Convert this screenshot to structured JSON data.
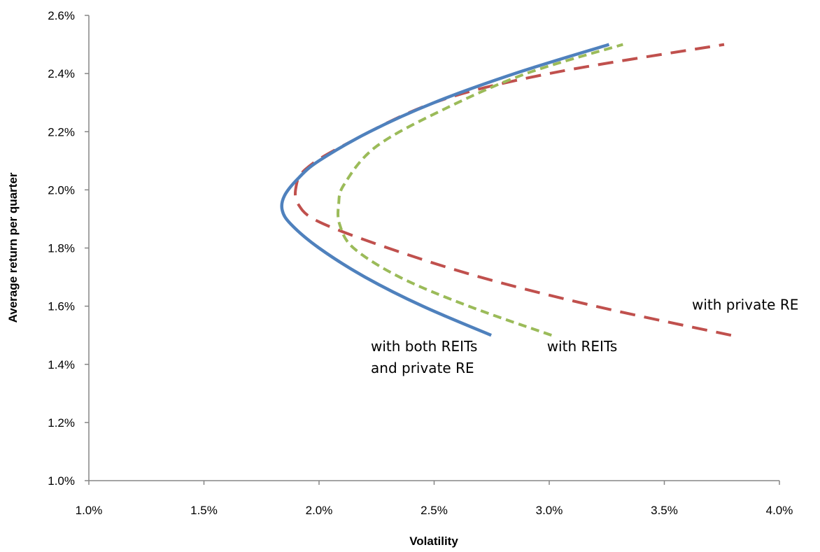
{
  "chart_data": {
    "type": "line",
    "title": "",
    "xlabel": "Volatility",
    "ylabel": "Average return per quarter",
    "xlim": [
      0.01,
      0.04
    ],
    "ylim": [
      0.01,
      0.026
    ],
    "xticks": [
      "1.0%",
      "1.5%",
      "2.0%",
      "2.5%",
      "3.0%",
      "3.5%",
      "4.0%"
    ],
    "yticks": [
      "1.0%",
      "1.2%",
      "1.4%",
      "1.6%",
      "1.8%",
      "2.0%",
      "2.2%",
      "2.4%",
      "2.6%"
    ],
    "grid": false,
    "legend": "none",
    "series": [
      {
        "color": "#4F81BD",
        "style": "solid",
        "x": [
          0.02748,
          0.0245,
          0.022,
          0.02,
          0.0188,
          0.0184,
          0.0185,
          0.0191,
          0.02,
          0.0222,
          0.025,
          0.0285,
          0.0326
        ],
        "y": [
          0.015,
          0.016,
          0.017,
          0.018,
          0.0188,
          0.0193,
          0.0198,
          0.0204,
          0.021,
          0.022,
          0.023,
          0.024,
          0.025
        ]
      },
      {
        "color": "#9BBB59",
        "style": "dashed",
        "x": [
          0.0301,
          0.0265,
          0.0235,
          0.0215,
          0.0209,
          0.02085,
          0.0211,
          0.0225,
          0.0255,
          0.029,
          0.0332
        ],
        "y": [
          0.015,
          0.016,
          0.017,
          0.018,
          0.0188,
          0.0195,
          0.0202,
          0.0215,
          0.0228,
          0.024,
          0.025
        ]
      },
      {
        "color": "#C0504D",
        "style": "dashed",
        "x": [
          0.0379,
          0.032,
          0.027,
          0.023,
          0.02,
          0.0191,
          0.019,
          0.0194,
          0.021,
          0.025,
          0.03,
          0.0376
        ],
        "y": [
          0.015,
          0.016,
          0.017,
          0.018,
          0.0189,
          0.0195,
          0.0201,
          0.0207,
          0.0215,
          0.023,
          0.024,
          0.025
        ]
      }
    ],
    "annotations": [
      {
        "lines": [
          "with both REITs",
          "and private RE"
        ],
        "x": 0.02225,
        "y": 0.01445
      },
      {
        "lines": [
          "with REITs"
        ],
        "x": 0.0299,
        "y": 0.01445
      },
      {
        "lines": [
          "with private  RE"
        ],
        "x": 0.0362,
        "y": 0.01588
      }
    ]
  }
}
